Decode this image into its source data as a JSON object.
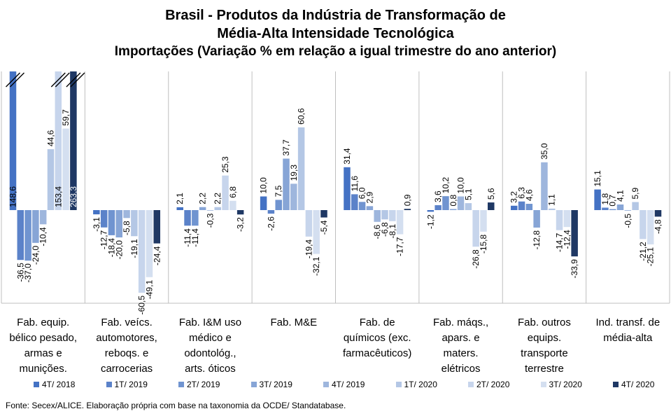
{
  "title_lines": [
    "Brasil - Produtos da Indústria de Transformação de",
    "Média-Alta Intensidade Tecnológica",
    "Importações (Variação % em relação a igual trimestre do ano anterior)"
  ],
  "source": "Fonte: Secex/ALICE. Elaboração própria com base na taxonomia da OCDE/ Standatabase.",
  "chart_data": {
    "type": "bar",
    "title": "Brasil - Produtos da Indústria de Transformação de Média-Alta Intensidade Tecnológica Importações (Variação % em relação a igual trimestre do ano anterior)",
    "grid": false,
    "legend_position": "bottom",
    "axis_break": true,
    "categories": [
      [
        "Fab. equip.",
        "bélico pesado,",
        "armas e",
        "munições."
      ],
      [
        "Fab. veícs.",
        "automotores,",
        "reboqs. e",
        "carrocerias"
      ],
      [
        "Fab. I&M uso",
        "médico e",
        "odontológ.,",
        "arts. óticos"
      ],
      [
        "Fab. M&E"
      ],
      [
        "Fab. de",
        "químicos (exc.",
        "farmacêuticos)"
      ],
      [
        "Fab. máqs.,",
        "apars. e",
        "maters.",
        "elétricos"
      ],
      [
        "Fab. outros",
        "equips.",
        "transporte",
        "terrestre"
      ],
      [
        "Ind. transf. de",
        "média-alta"
      ]
    ],
    "series": [
      {
        "name": "4T/ 2018",
        "color": "#4472c4",
        "values": [
          148.6,
          -3.1,
          2.1,
          10.0,
          31.4,
          -1.2,
          3.2,
          15.1
        ],
        "labels": [
          "148,6",
          "-3,1",
          "2,1",
          "10,0",
          "31,4",
          "-1,2",
          "3,2",
          "15,1"
        ]
      },
      {
        "name": "1T/ 2019",
        "color": "#5b82c9",
        "values": [
          -36.5,
          -12.7,
          -11.4,
          -2.6,
          11.6,
          3.6,
          6.3,
          1.8
        ],
        "labels": [
          "-36,5",
          "-12,7",
          "-11,4",
          "-2,6",
          "11,6",
          "3,6",
          "6,3",
          "1,8"
        ]
      },
      {
        "name": "2T/ 2019",
        "color": "#7094d0",
        "values": [
          -37.0,
          -18.4,
          -11.4,
          7.5,
          6.0,
          10.2,
          4.6,
          0.7
        ],
        "labels": [
          "-37,0",
          "-18,4",
          "-11,4",
          "7,5",
          "6,0",
          "10,2",
          "4,6",
          "0,7"
        ]
      },
      {
        "name": "3T/ 2019",
        "color": "#87a5d6",
        "values": [
          -24.0,
          -20.0,
          2.2,
          37.7,
          2.9,
          0.8,
          -12.8,
          4.1
        ],
        "labels": [
          "-24,0",
          "-20,0",
          "2,2",
          "37,7",
          "2,9",
          "0,8",
          "-12,8",
          "4,1"
        ]
      },
      {
        "name": "4T/ 2019",
        "color": "#9eb6dd",
        "values": [
          -10.4,
          -5.8,
          -0.3,
          19.3,
          -8.6,
          10.0,
          35.0,
          -0.5
        ],
        "labels": [
          "-10,4",
          "-5,8",
          "-0,3",
          "19,3",
          "-8,6",
          "10,0",
          "35,0",
          "-0,5"
        ]
      },
      {
        "name": "1T/ 2020",
        "color": "#b4c7e5",
        "values": [
          44.6,
          -19.1,
          2.2,
          60.6,
          -6.8,
          5.1,
          1.1,
          5.9
        ],
        "labels": [
          "44,6",
          "-19,1",
          "2,2",
          "60,6",
          "-6,8",
          "5,1",
          "1,1",
          "5,9"
        ]
      },
      {
        "name": "2T/ 2020",
        "color": "#c7d5ec",
        "values": [
          153.4,
          -60.5,
          25.3,
          -19.4,
          -8.1,
          -26.8,
          -14.7,
          -21.2
        ],
        "labels": [
          "153,4",
          "-60,5",
          "25,3",
          "-19,4",
          "-8,1",
          "-26,8",
          "-14,7",
          "-21,2"
        ]
      },
      {
        "name": "3T/ 2020",
        "color": "#d4dff0",
        "values": [
          59.7,
          -49.1,
          6.8,
          -32.1,
          -17.7,
          -15.8,
          -12.4,
          -25.1
        ],
        "labels": [
          "59,7",
          "-49,1",
          "6,8",
          "-32,1",
          "-17,7",
          "-15,8",
          "-12,4",
          "-25,1"
        ]
      },
      {
        "name": "4T/ 2020",
        "color": "#1f3864",
        "values": [
          263.3,
          -24.4,
          -3.2,
          -5.4,
          0.9,
          5.6,
          -33.9,
          -4.8
        ],
        "labels": [
          "263,3",
          "-24,4",
          "-3,2",
          "-5,4",
          "0,9",
          "5,6",
          "-33,9",
          "-4,8"
        ]
      }
    ]
  }
}
